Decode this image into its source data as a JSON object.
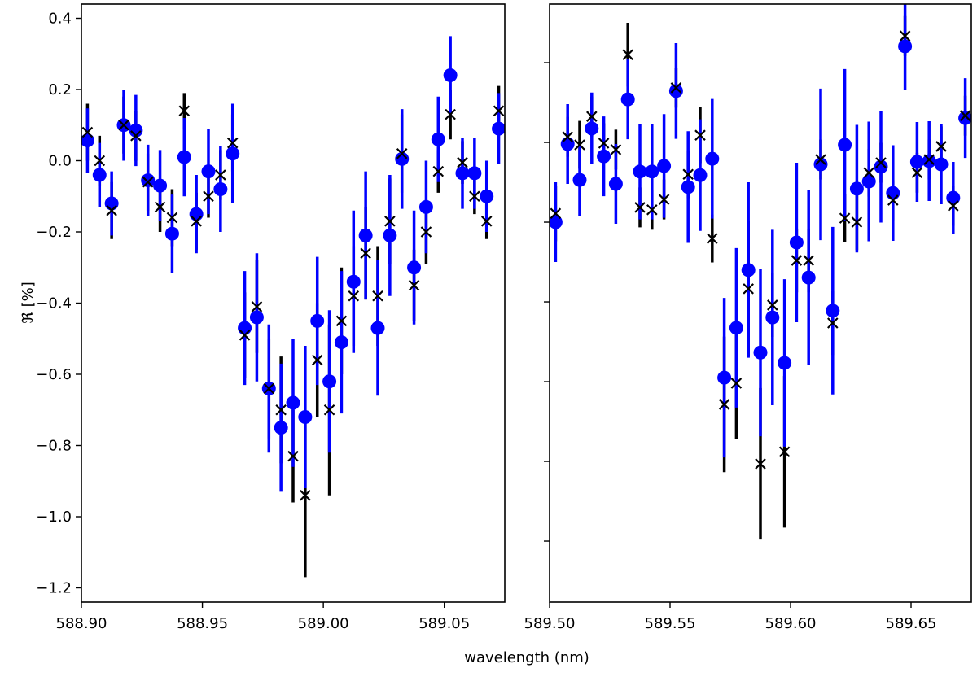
{
  "chart_data": [
    {
      "type": "errorbar",
      "xlabel": "wavelength (nm)",
      "ylabel": "ℜ [%]",
      "xlim": [
        588.9,
        589.075
      ],
      "ylim": [
        -1.24,
        0.44
      ],
      "xticks": [
        {
          "value": 588.9,
          "label": "588.90"
        },
        {
          "value": 588.95,
          "label": "588.95"
        },
        {
          "value": 589.0,
          "label": "589.00"
        },
        {
          "value": 589.05,
          "label": "589.05"
        }
      ],
      "yticks": [
        0.4,
        0.2,
        {
          "value": 0,
          "label": "0.0"
        },
        {
          "value": -0.2,
          "label": "−0.2"
        },
        {
          "value": -0.4,
          "label": "−0.4"
        },
        {
          "value": -0.6,
          "label": "−0.6"
        },
        {
          "value": -0.8,
          "label": "−0.8"
        },
        {
          "value": -1.0,
          "label": "−1.0"
        },
        {
          "value": -1.2,
          "label": "−1.2"
        }
      ],
      "x": [
        588.9025,
        588.9075,
        588.9125,
        588.9175,
        588.9225,
        588.9275,
        588.9325,
        588.9375,
        588.9425,
        588.9475,
        588.9525,
        588.9575,
        588.9625,
        588.9675,
        588.9725,
        588.9775,
        588.9825,
        588.9875,
        588.9925,
        588.9975,
        589.0025,
        589.0075,
        589.0125,
        589.0175,
        589.0225,
        589.0275,
        589.0325,
        589.0375,
        589.0425,
        589.0475,
        589.0525,
        589.0575,
        589.0625,
        589.0675,
        589.0725
      ],
      "series": [
        {
          "color": "#000000",
          "marker": "x",
          "values": [
            0.08,
            0.0,
            -0.14,
            0.1,
            0.07,
            -0.06,
            -0.13,
            -0.16,
            0.14,
            -0.17,
            -0.1,
            -0.04,
            0.05,
            -0.49,
            -0.41,
            -0.64,
            -0.7,
            -0.83,
            -0.94,
            -0.56,
            -0.7,
            -0.45,
            -0.38,
            -0.26,
            -0.38,
            -0.17,
            0.02,
            -0.35,
            -0.2,
            -0.03,
            0.13,
            -0.005,
            -0.1,
            -0.17,
            0.14
          ],
          "errors": [
            0.08,
            0.07,
            0.08,
            0.08,
            0.07,
            0.08,
            0.07,
            0.08,
            0.05,
            0.08,
            0.06,
            0.07,
            0.08,
            0.12,
            0.13,
            0.14,
            0.15,
            0.13,
            0.23,
            0.16,
            0.24,
            0.15,
            0.14,
            0.13,
            0.14,
            0.12,
            0.11,
            0.1,
            0.09,
            0.06,
            0.07,
            0.06,
            0.05,
            0.05,
            0.07
          ]
        },
        {
          "color": "#0000ff",
          "marker": "o",
          "values": [
            0.057,
            -0.04,
            -0.12,
            0.1,
            0.085,
            -0.055,
            -0.07,
            -0.205,
            0.01,
            -0.15,
            -0.03,
            -0.08,
            0.02,
            -0.47,
            -0.44,
            -0.64,
            -0.75,
            -0.68,
            -0.72,
            -0.45,
            -0.62,
            -0.51,
            -0.34,
            -0.21,
            -0.47,
            -0.21,
            0.005,
            -0.3,
            -0.13,
            0.06,
            0.24,
            -0.035,
            -0.035,
            -0.1,
            0.09
          ],
          "errors": [
            0.09,
            0.09,
            0.09,
            0.1,
            0.1,
            0.1,
            0.1,
            0.11,
            0.11,
            0.11,
            0.12,
            0.12,
            0.14,
            0.16,
            0.18,
            0.18,
            0.18,
            0.18,
            0.2,
            0.18,
            0.2,
            0.2,
            0.2,
            0.18,
            0.19,
            0.17,
            0.14,
            0.16,
            0.13,
            0.12,
            0.11,
            0.1,
            0.1,
            0.1,
            0.1
          ]
        }
      ]
    },
    {
      "type": "errorbar",
      "xlim": [
        589.5,
        589.675
      ],
      "ylim": [
        -1.153,
        0.347
      ],
      "xticks": [
        {
          "value": 589.5,
          "label": "589.50"
        },
        {
          "value": 589.55,
          "label": "589.55"
        },
        {
          "value": 589.6,
          "label": "589.60"
        },
        {
          "value": 589.65,
          "label": "589.65"
        }
      ],
      "yticks": [
        0.2,
        0,
        -0.2,
        -0.4,
        -0.6,
        -0.8,
        -1.0
      ],
      "x": [
        589.5025,
        589.5075,
        589.5125,
        589.5175,
        589.5225,
        589.5275,
        589.5325,
        589.5375,
        589.5425,
        589.5475,
        589.5525,
        589.5575,
        589.5625,
        589.5675,
        589.5725,
        589.5775,
        589.5825,
        589.5875,
        589.5925,
        589.5975,
        589.6025,
        589.6075,
        589.6125,
        589.6175,
        589.6225,
        589.6275,
        589.6325,
        589.6375,
        589.6425,
        589.6475,
        589.6525,
        589.6575,
        589.6625,
        589.6675,
        589.6725
      ],
      "series": [
        {
          "color": "#000000",
          "marker": "x",
          "values": [
            -0.178,
            0.014,
            -0.006,
            0.065,
            -0.002,
            -0.018,
            0.22,
            -0.163,
            -0.169,
            -0.143,
            0.137,
            -0.08,
            0.018,
            -0.241,
            -0.657,
            -0.604,
            -0.367,
            -0.806,
            -0.408,
            -0.776,
            -0.296,
            -0.296,
            -0.043,
            -0.453,
            -0.19,
            -0.2,
            -0.076,
            -0.051,
            -0.145,
            0.267,
            -0.076,
            -0.043,
            -0.01,
            -0.159,
            0.067
          ],
          "errors": [
            0.07,
            0.05,
            0.06,
            0.05,
            0.05,
            0.05,
            0.08,
            0.05,
            0.05,
            0.05,
            0.05,
            0.06,
            0.07,
            0.06,
            0.17,
            0.14,
            0.17,
            0.19,
            0.08,
            0.19,
            0.08,
            0.08,
            0.05,
            0.08,
            0.06,
            0.07,
            0.06,
            0.05,
            0.05,
            0.05,
            0.05,
            0.05,
            0.05,
            0.05,
            0.05
          ]
        },
        {
          "color": "#0000ff",
          "marker": "o",
          "values": [
            -0.2,
            -0.004,
            -0.094,
            0.035,
            -0.035,
            -0.104,
            0.108,
            -0.073,
            -0.073,
            -0.059,
            0.129,
            -0.112,
            -0.082,
            -0.041,
            -0.59,
            -0.465,
            -0.32,
            -0.527,
            -0.439,
            -0.553,
            -0.251,
            -0.339,
            -0.055,
            -0.422,
            -0.006,
            -0.116,
            -0.098,
            -0.061,
            -0.127,
            0.241,
            -0.049,
            -0.047,
            -0.055,
            -0.139,
            0.061
          ],
          "errors": [
            0.1,
            0.1,
            0.09,
            0.09,
            0.1,
            0.1,
            0.1,
            0.12,
            0.12,
            0.13,
            0.12,
            0.14,
            0.14,
            0.15,
            0.2,
            0.2,
            0.22,
            0.21,
            0.22,
            0.21,
            0.2,
            0.22,
            0.19,
            0.21,
            0.19,
            0.16,
            0.15,
            0.14,
            0.12,
            0.11,
            0.1,
            0.1,
            0.1,
            0.09,
            0.1
          ]
        }
      ]
    }
  ]
}
